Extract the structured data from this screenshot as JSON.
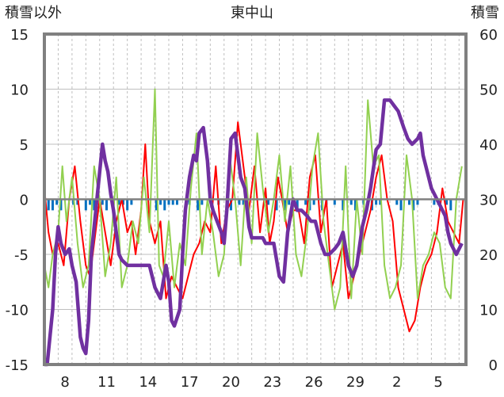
{
  "chart_data": {
    "type": "line",
    "title": "東中山",
    "ylabel_left": "積雪以外",
    "ylabel_right": "積雪",
    "ylim_left": [
      -15,
      15
    ],
    "ylim_right": [
      0,
      60
    ],
    "yticks_left": [
      "-15",
      "-10",
      "-5",
      "0",
      "5",
      "10",
      "15"
    ],
    "yticks_right": [
      "0",
      "10",
      "20",
      "30",
      "40",
      "50",
      "60"
    ],
    "xtick_labels": [
      "8",
      "11",
      "14",
      "17",
      "20",
      "23",
      "26",
      "29",
      "2",
      "5"
    ],
    "x_range_days": [
      0,
      30.5
    ],
    "xtick_days": [
      1.5,
      4.5,
      7.5,
      10.5,
      13.5,
      16.5,
      19.5,
      22.5,
      25.5,
      28.5
    ],
    "grid": true,
    "colors": {
      "red": "#ff0000",
      "green": "#92d050",
      "purple": "#7030a0",
      "bar": "#0070c0",
      "frame": "#808080",
      "grid": "#bfbfbf"
    },
    "series": [
      {
        "name": "red",
        "axis": "left",
        "x": [
          0,
          0.3,
          0.6,
          1,
          1.4,
          1.8,
          2.2,
          2.6,
          3,
          3.3,
          3.6,
          4,
          4.4,
          4.8,
          5.2,
          5.6,
          6,
          6.3,
          6.6,
          7,
          7.3,
          7.6,
          8,
          8.4,
          8.8,
          9.2,
          9.6,
          10,
          10.4,
          10.8,
          11.2,
          11.6,
          12,
          12.4,
          12.8,
          13.2,
          13.6,
          14,
          14.4,
          14.8,
          15.2,
          15.6,
          16,
          16.3,
          16.6,
          16.9,
          17.2,
          17.6,
          18,
          18.4,
          18.8,
          19.2,
          19.6,
          20,
          20.4,
          20.8,
          21.2,
          21.6,
          22,
          22.4,
          22.8,
          23.2,
          23.6,
          24,
          24.4,
          24.8,
          25.2,
          25.6,
          26,
          26.4,
          26.8,
          27.2,
          27.6,
          28,
          28.4,
          28.8,
          29.2,
          29.6,
          30,
          30.3
        ],
        "values": [
          1,
          -3,
          -5,
          -4,
          -6,
          0,
          3,
          -2,
          -6,
          -7,
          -4,
          0,
          -3,
          -6,
          -2,
          0,
          -3,
          -2,
          -5,
          -1,
          5,
          -2,
          -4,
          -2,
          -9,
          -7,
          -8,
          -9,
          -7,
          -5,
          -4,
          -2,
          -3,
          3,
          -4,
          -1,
          0,
          7,
          3,
          -1,
          3,
          -3,
          1,
          -4,
          -2,
          2,
          0,
          -3,
          -1,
          -1,
          -4,
          2,
          4,
          -3,
          0,
          -8,
          -6,
          -4,
          -9,
          -7,
          -5,
          -3,
          -1,
          2,
          4,
          0,
          -2,
          -8,
          -10,
          -12,
          -11,
          -8,
          -6,
          -5,
          -3,
          1,
          -2,
          -3,
          -4,
          0
        ]
      },
      {
        "name": "green",
        "axis": "left",
        "x": [
          0,
          0.3,
          0.6,
          1,
          1.3,
          1.6,
          2,
          2.4,
          2.8,
          3.2,
          3.6,
          4,
          4.4,
          4.8,
          5.2,
          5.6,
          6,
          6.4,
          6.8,
          7.2,
          7.6,
          8,
          8.3,
          8.6,
          9,
          9.4,
          9.8,
          10.2,
          10.6,
          11,
          11.4,
          11.8,
          12.2,
          12.6,
          13,
          13.4,
          13.8,
          14.2,
          14.6,
          15,
          15.4,
          15.8,
          16.2,
          16.6,
          17,
          17.4,
          17.8,
          18.2,
          18.6,
          19,
          19.4,
          19.8,
          20.2,
          20.6,
          21,
          21.4,
          21.8,
          22.2,
          22.6,
          23,
          23.4,
          23.8,
          24.2,
          24.6,
          25,
          25.4,
          25.8,
          26.2,
          26.6,
          27,
          27.4,
          27.8,
          28.2,
          28.6,
          29,
          29.4,
          29.8,
          30.2
        ],
        "values": [
          -6,
          -8,
          -5,
          -3,
          3,
          -2,
          2,
          -4,
          -8,
          -6,
          3,
          0,
          -7,
          -4,
          2,
          -8,
          -6,
          -2,
          -4,
          2,
          -3,
          10,
          -6,
          -7,
          -2,
          -8,
          -4,
          -6,
          1,
          6,
          -5,
          0,
          -3,
          -7,
          -5,
          4,
          0,
          -6,
          2,
          -4,
          6,
          1,
          -3,
          0,
          4,
          -2,
          3,
          -5,
          -7,
          -3,
          3,
          6,
          -2,
          -6,
          -10,
          -8,
          3,
          -9,
          0,
          -5,
          9,
          3,
          4,
          -6,
          -9,
          -8,
          -6,
          4,
          0,
          -9,
          -6,
          -5,
          -3,
          -4,
          -8,
          -9,
          0,
          3
        ]
      },
      {
        "name": "purple",
        "axis": "right",
        "x": [
          0,
          0.2,
          0.4,
          0.6,
          0.8,
          1,
          1.2,
          1.5,
          1.8,
          2,
          2.3,
          2.6,
          2.8,
          3,
          3.2,
          3.4,
          3.6,
          3.8,
          4,
          4.2,
          4.4,
          4.6,
          4.8,
          5,
          5.2,
          5.4,
          5.6,
          6,
          6.4,
          6.8,
          7.2,
          7.6,
          8,
          8.4,
          8.8,
          9,
          9.2,
          9.4,
          9.8,
          10,
          10.2,
          10.5,
          10.8,
          11,
          11.2,
          11.5,
          11.8,
          12,
          12.2,
          12.5,
          12.8,
          13,
          13.2,
          13.5,
          13.8,
          14,
          14.2,
          14.5,
          14.8,
          15,
          15.2,
          15.5,
          15.8,
          16,
          16.3,
          16.6,
          17,
          17.3,
          17.6,
          18,
          18.3,
          18.6,
          19,
          19.3,
          19.6,
          20,
          20.3,
          20.6,
          21,
          21.3,
          21.6,
          22,
          22.3,
          22.6,
          23,
          23.3,
          23.6,
          24,
          24.3,
          24.6,
          25,
          25.3,
          25.6,
          26,
          26.3,
          26.6,
          27,
          27.2,
          27.4,
          27.6,
          27.8,
          28,
          28.2,
          28.4,
          28.6,
          28.8,
          29,
          29.2,
          29.4,
          29.6,
          29.8,
          30,
          30.2
        ],
        "values": [
          0,
          0,
          5,
          10,
          20,
          25,
          22,
          20,
          21,
          18,
          15,
          5,
          3,
          2,
          8,
          20,
          25,
          30,
          35,
          40,
          37,
          35,
          31,
          28,
          24,
          20,
          19,
          18,
          18,
          18,
          18,
          18,
          14,
          12,
          18,
          15,
          8,
          7,
          10,
          20,
          28,
          34,
          38,
          37,
          42,
          43,
          37,
          30,
          28,
          26,
          24,
          22,
          28,
          41,
          42,
          38,
          34,
          32,
          25,
          23,
          23,
          23,
          23,
          22,
          22,
          22,
          16,
          15,
          24,
          30,
          28,
          28,
          27,
          26,
          26,
          22,
          20,
          20,
          21,
          22,
          24,
          18,
          16,
          18,
          25,
          28,
          32,
          39,
          40,
          48,
          48,
          47,
          46,
          43,
          41,
          40,
          41,
          42,
          38,
          36,
          34,
          32,
          31,
          30,
          29,
          28,
          27,
          24,
          22,
          21,
          20,
          21,
          22
        ]
      }
    ],
    "bars": {
      "name": "blue",
      "axis": "left",
      "x": [
        0.3,
        0.6,
        0.9,
        1.2,
        2.1,
        2.4,
        3.0,
        3.3,
        3.6,
        4.2,
        4.5,
        5.4,
        5.7,
        6.0,
        6.3,
        8.1,
        8.4,
        8.7,
        9.0,
        9.3,
        9.6,
        10.5,
        11.1,
        11.4,
        12.6,
        13.2,
        13.5,
        14.1,
        14.4,
        14.7,
        16.2,
        16.8,
        17.4,
        17.7,
        18.0,
        18.3,
        18.9,
        19.2,
        19.5,
        20.1,
        20.4,
        21.0,
        21.6,
        22.2,
        22.5,
        23.1,
        23.7,
        24.0,
        24.3,
        25.5,
        25.8,
        26.4,
        26.7,
        27.0,
        28.2,
        28.5,
        29.1,
        29.4
      ],
      "values": [
        -1,
        -1,
        -0.5,
        -1,
        -0.5,
        -0.5,
        -1,
        -0.5,
        -1,
        -0.5,
        -1,
        -0.5,
        -0.5,
        -1,
        -0.5,
        -1,
        -0.5,
        -1,
        -0.5,
        -0.5,
        -0.5,
        -0.5,
        -1,
        -0.5,
        -0.5,
        -0.5,
        -1,
        -0.5,
        -0.5,
        -1,
        -0.5,
        -1,
        -1,
        -0.5,
        -0.5,
        -1,
        -0.5,
        -1,
        -0.5,
        -1,
        -0.5,
        -0.5,
        -1,
        -0.5,
        -1,
        -0.5,
        -1,
        -0.5,
        -0.5,
        -0.5,
        -1,
        -0.5,
        -1,
        -0.5,
        -0.5,
        -0.5,
        -0.5,
        -1
      ]
    }
  }
}
